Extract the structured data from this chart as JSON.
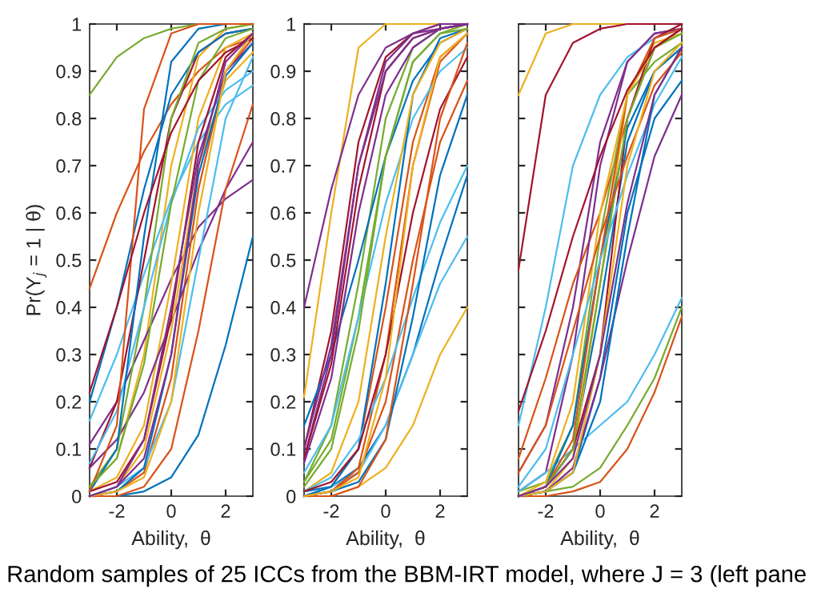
{
  "chart_data": [
    {
      "type": "line",
      "ylabel": "Pr(Y$_{j}$ = 1 | θ)",
      "xlabel": "Ability,  θ",
      "x": [
        -3,
        -2,
        -1,
        0,
        1,
        2,
        3
      ],
      "xlim": [
        -3,
        3
      ],
      "xticks": [
        -2,
        0,
        2
      ],
      "ylim": [
        0,
        1
      ],
      "yticks": [
        0,
        0.1,
        0.2,
        0.3,
        0.4,
        0.5,
        0.6,
        0.7,
        0.8,
        0.9,
        1
      ],
      "grid": false,
      "marker": "none",
      "line_style": "solid",
      "annotations": [
        "Random samples of 25 ICCs from the BBM-IRT model, where J = 3 (left pane"
      ],
      "series": [
        {
          "color": "#0072bd",
          "values": [
            0,
            0,
            0.01,
            0.04,
            0.13,
            0.32,
            0.55
          ]
        },
        {
          "color": "#d95319",
          "values": [
            0.44,
            0.6,
            0.73,
            0.83,
            0.9,
            0.95,
            0.97
          ]
        },
        {
          "color": "#edb120",
          "values": [
            0.02,
            0.08,
            0.3,
            0.7,
            0.93,
            0.99,
            1
          ]
        },
        {
          "color": "#7e2f8e",
          "values": [
            0.11,
            0.2,
            0.33,
            0.46,
            0.57,
            0.63,
            0.67
          ]
        },
        {
          "color": "#77ac30",
          "values": [
            0.85,
            0.93,
            0.97,
            0.99,
            1,
            1,
            1
          ]
        },
        {
          "color": "#4dbeee",
          "values": [
            0.16,
            0.3,
            0.47,
            0.63,
            0.75,
            0.83,
            0.87
          ]
        },
        {
          "color": "#a2142f",
          "values": [
            0.06,
            0.2,
            0.5,
            0.8,
            0.94,
            0.98,
            0.99
          ]
        },
        {
          "color": "#0072bd",
          "values": [
            0.2,
            0.4,
            0.65,
            0.85,
            0.94,
            0.98,
            0.99
          ]
        },
        {
          "color": "#d95319",
          "values": [
            0,
            0.01,
            0.05,
            0.25,
            0.65,
            0.9,
            0.97
          ]
        },
        {
          "color": "#edb120",
          "values": [
            0.01,
            0.04,
            0.15,
            0.45,
            0.8,
            0.95,
            0.98
          ]
        },
        {
          "color": "#7e2f8e",
          "values": [
            0.06,
            0.12,
            0.22,
            0.37,
            0.52,
            0.65,
            0.75
          ]
        },
        {
          "color": "#77ac30",
          "values": [
            0.02,
            0.1,
            0.4,
            0.8,
            0.96,
            0.99,
            1
          ]
        },
        {
          "color": "#4dbeee",
          "values": [
            0.07,
            0.18,
            0.4,
            0.62,
            0.78,
            0.86,
            0.9
          ]
        },
        {
          "color": "#a2142f",
          "values": [
            0.01,
            0.03,
            0.12,
            0.38,
            0.75,
            0.93,
            0.98
          ]
        },
        {
          "color": "#0072bd",
          "values": [
            0.01,
            0.1,
            0.55,
            0.92,
            0.99,
            1,
            1
          ]
        },
        {
          "color": "#d95319",
          "values": [
            0.01,
            0.15,
            0.82,
            0.98,
            1,
            1,
            1
          ]
        },
        {
          "color": "#edb120",
          "values": [
            0,
            0.02,
            0.1,
            0.35,
            0.7,
            0.88,
            0.94
          ]
        },
        {
          "color": "#7e2f8e",
          "values": [
            0,
            0.02,
            0.12,
            0.4,
            0.72,
            0.9,
            0.96
          ]
        },
        {
          "color": "#77ac30",
          "values": [
            0.02,
            0.08,
            0.28,
            0.62,
            0.88,
            0.97,
            0.99
          ]
        },
        {
          "color": "#4dbeee",
          "values": [
            0,
            0.02,
            0.06,
            0.2,
            0.5,
            0.8,
            0.93
          ]
        },
        {
          "color": "#a2142f",
          "values": [
            0.22,
            0.4,
            0.6,
            0.77,
            0.88,
            0.94,
            0.97
          ]
        },
        {
          "color": "#0072bd",
          "values": [
            0,
            0.01,
            0.06,
            0.3,
            0.68,
            0.89,
            0.96
          ]
        },
        {
          "color": "#d95319",
          "values": [
            0,
            0,
            0.02,
            0.1,
            0.35,
            0.65,
            0.83
          ]
        },
        {
          "color": "#edb120",
          "values": [
            0,
            0.01,
            0.04,
            0.2,
            0.6,
            0.9,
            0.98
          ]
        },
        {
          "color": "#7e2f8e",
          "values": [
            0,
            0.02,
            0.08,
            0.3,
            0.7,
            0.92,
            0.98
          ]
        }
      ]
    },
    {
      "type": "line",
      "xlabel": "Ability,  θ",
      "x": [
        -3,
        -2,
        -1,
        0,
        1,
        2,
        3
      ],
      "xlim": [
        -3,
        3
      ],
      "xticks": [
        -2,
        0,
        2
      ],
      "ylim": [
        0,
        1
      ],
      "yticks": [
        0,
        0.1,
        0.2,
        0.3,
        0.4,
        0.5,
        0.6,
        0.7,
        0.8,
        0.9,
        1
      ],
      "grid": false,
      "marker": "none",
      "line_style": "solid",
      "series": [
        {
          "color": "#0072bd",
          "values": [
            0.01,
            0.02,
            0.06,
            0.15,
            0.3,
            0.5,
            0.68
          ]
        },
        {
          "color": "#d95319",
          "values": [
            0,
            0.02,
            0.1,
            0.4,
            0.75,
            0.93,
            0.98
          ]
        },
        {
          "color": "#edb120",
          "values": [
            0.21,
            0.6,
            0.95,
            1,
            1,
            1,
            1
          ]
        },
        {
          "color": "#7e2f8e",
          "values": [
            0.4,
            0.65,
            0.85,
            0.95,
            0.98,
            0.99,
            1
          ]
        },
        {
          "color": "#77ac30",
          "values": [
            0.03,
            0.15,
            0.45,
            0.8,
            0.95,
            0.99,
            1
          ]
        },
        {
          "color": "#4dbeee",
          "values": [
            0,
            0.02,
            0.05,
            0.15,
            0.3,
            0.45,
            0.55
          ]
        },
        {
          "color": "#a2142f",
          "values": [
            0.1,
            0.35,
            0.75,
            0.93,
            0.98,
            1,
            1
          ]
        },
        {
          "color": "#0072bd",
          "values": [
            0.15,
            0.3,
            0.5,
            0.72,
            0.88,
            0.96,
            0.99
          ]
        },
        {
          "color": "#d95319",
          "values": [
            0,
            0.01,
            0.05,
            0.2,
            0.5,
            0.75,
            0.88
          ]
        },
        {
          "color": "#edb120",
          "values": [
            0,
            0,
            0.02,
            0.06,
            0.15,
            0.3,
            0.4
          ]
        },
        {
          "color": "#7e2f8e",
          "values": [
            0.08,
            0.3,
            0.7,
            0.92,
            0.98,
            1,
            1
          ]
        },
        {
          "color": "#77ac30",
          "values": [
            0.03,
            0.12,
            0.38,
            0.72,
            0.92,
            0.98,
            1
          ]
        },
        {
          "color": "#4dbeee",
          "values": [
            0.05,
            0.15,
            0.38,
            0.62,
            0.8,
            0.9,
            0.95
          ]
        },
        {
          "color": "#a2142f",
          "values": [
            0.08,
            0.28,
            0.65,
            0.9,
            0.97,
            0.99,
            1
          ]
        },
        {
          "color": "#0072bd",
          "values": [
            0,
            0.02,
            0.1,
            0.45,
            0.85,
            0.97,
            0.99
          ]
        },
        {
          "color": "#d95319",
          "values": [
            0,
            0.01,
            0.06,
            0.3,
            0.7,
            0.92,
            0.98
          ]
        },
        {
          "color": "#edb120",
          "values": [
            0.01,
            0.05,
            0.2,
            0.55,
            0.85,
            0.96,
            0.99
          ]
        },
        {
          "color": "#7e2f8e",
          "values": [
            0.1,
            0.32,
            0.7,
            0.9,
            0.97,
            0.99,
            1
          ]
        },
        {
          "color": "#77ac30",
          "values": [
            0.02,
            0.1,
            0.35,
            0.72,
            0.92,
            0.98,
            0.99
          ]
        },
        {
          "color": "#4dbeee",
          "values": [
            0.01,
            0.04,
            0.12,
            0.25,
            0.42,
            0.58,
            0.7
          ]
        },
        {
          "color": "#a2142f",
          "values": [
            0.01,
            0.03,
            0.1,
            0.3,
            0.6,
            0.82,
            0.93
          ]
        },
        {
          "color": "#0072bd",
          "values": [
            0,
            0.01,
            0.03,
            0.12,
            0.38,
            0.68,
            0.85
          ]
        },
        {
          "color": "#d95319",
          "values": [
            0,
            0,
            0.02,
            0.12,
            0.45,
            0.8,
            0.96
          ]
        },
        {
          "color": "#edb120",
          "values": [
            0,
            0.01,
            0.04,
            0.25,
            0.7,
            0.93,
            0.98
          ]
        },
        {
          "color": "#7e2f8e",
          "values": [
            0.07,
            0.25,
            0.6,
            0.85,
            0.95,
            0.99,
            1
          ]
        }
      ]
    },
    {
      "type": "line",
      "xlabel": "Ability,  θ",
      "x": [
        -3,
        -2,
        -1,
        0,
        1,
        2,
        3
      ],
      "xlim": [
        -3,
        3
      ],
      "xticks": [
        -2,
        0,
        2
      ],
      "ylim": [
        0,
        1
      ],
      "yticks": [
        0,
        0.1,
        0.2,
        0.3,
        0.4,
        0.5,
        0.6,
        0.7,
        0.8,
        0.9,
        1
      ],
      "tick_labels": "x",
      "grid": false,
      "marker": "none",
      "line_style": "solid",
      "series": [
        {
          "color": "#0072bd",
          "values": [
            0,
            0.01,
            0.05,
            0.25,
            0.6,
            0.8,
            0.88
          ]
        },
        {
          "color": "#d95319",
          "values": [
            0,
            0,
            0.01,
            0.03,
            0.1,
            0.22,
            0.38
          ]
        },
        {
          "color": "#edb120",
          "values": [
            0.85,
            0.98,
            1,
            1,
            1,
            1,
            1
          ]
        },
        {
          "color": "#7e2f8e",
          "values": [
            0.05,
            0.15,
            0.4,
            0.75,
            0.92,
            0.98,
            0.99
          ]
        },
        {
          "color": "#77ac30",
          "values": [
            0,
            0.01,
            0.02,
            0.06,
            0.15,
            0.25,
            0.4
          ]
        },
        {
          "color": "#4dbeee",
          "values": [
            0.15,
            0.4,
            0.7,
            0.85,
            0.93,
            0.97,
            0.99
          ]
        },
        {
          "color": "#a2142f",
          "values": [
            0.48,
            0.85,
            0.96,
            0.99,
            1,
            1,
            1
          ]
        },
        {
          "color": "#0072bd",
          "values": [
            0,
            0.02,
            0.1,
            0.4,
            0.75,
            0.9,
            0.95
          ]
        },
        {
          "color": "#d95319",
          "values": [
            0.08,
            0.25,
            0.45,
            0.6,
            0.8,
            0.95,
            0.99
          ]
        },
        {
          "color": "#edb120",
          "values": [
            0,
            0.01,
            0.08,
            0.45,
            0.85,
            0.96,
            0.98
          ]
        },
        {
          "color": "#7e2f8e",
          "values": [
            0.01,
            0.05,
            0.3,
            0.7,
            0.92,
            0.98,
            0.99
          ]
        },
        {
          "color": "#77ac30",
          "values": [
            0.01,
            0.03,
            0.15,
            0.55,
            0.85,
            0.92,
            0.96
          ]
        },
        {
          "color": "#4dbeee",
          "values": [
            0.01,
            0.05,
            0.1,
            0.15,
            0.2,
            0.3,
            0.42
          ]
        },
        {
          "color": "#a2142f",
          "values": [
            0,
            0.02,
            0.1,
            0.3,
            0.8,
            0.97,
            1
          ]
        },
        {
          "color": "#0072bd",
          "values": [
            0,
            0.02,
            0.15,
            0.5,
            0.78,
            0.9,
            0.95
          ]
        },
        {
          "color": "#d95319",
          "values": [
            0,
            0.02,
            0.12,
            0.5,
            0.85,
            0.97,
            0.99
          ]
        },
        {
          "color": "#edb120",
          "values": [
            0,
            0.03,
            0.2,
            0.6,
            0.85,
            0.95,
            0.98
          ]
        },
        {
          "color": "#7e2f8e",
          "values": [
            0,
            0.01,
            0.06,
            0.25,
            0.5,
            0.72,
            0.85
          ]
        },
        {
          "color": "#77ac30",
          "values": [
            0,
            0.02,
            0.1,
            0.45,
            0.8,
            0.95,
            0.98
          ]
        },
        {
          "color": "#4dbeee",
          "values": [
            0.02,
            0.1,
            0.3,
            0.5,
            0.68,
            0.83,
            0.93
          ]
        },
        {
          "color": "#a2142f",
          "values": [
            0.18,
            0.35,
            0.55,
            0.72,
            0.86,
            0.95,
            0.99
          ]
        },
        {
          "color": "#0072bd",
          "values": [
            0,
            0.01,
            0.05,
            0.2,
            0.55,
            0.85,
            0.95
          ]
        },
        {
          "color": "#d95319",
          "values": [
            0.05,
            0.15,
            0.35,
            0.55,
            0.72,
            0.87,
            0.94
          ]
        },
        {
          "color": "#edb120",
          "values": [
            0,
            0.01,
            0.05,
            0.3,
            0.7,
            0.9,
            0.96
          ]
        },
        {
          "color": "#7e2f8e",
          "values": [
            0,
            0.02,
            0.08,
            0.3,
            0.62,
            0.85,
            0.95
          ]
        }
      ]
    }
  ]
}
